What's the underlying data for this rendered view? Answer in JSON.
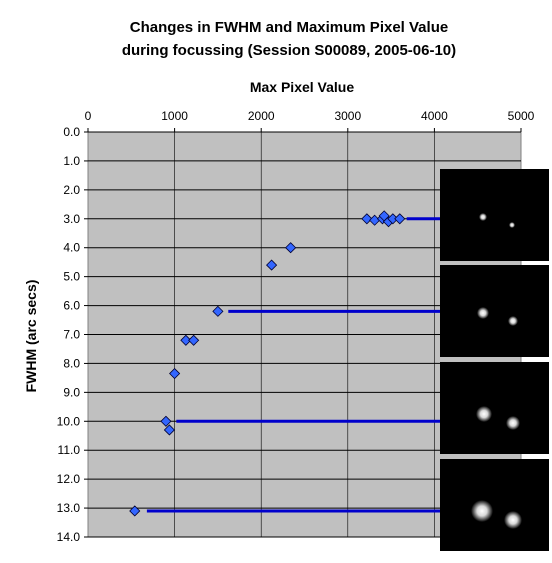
{
  "chart_data": {
    "type": "scatter",
    "title_lines": [
      "Changes in FWHM and Maximum Pixel Value",
      "during focussing (Session S00089, 2005-06-10)"
    ],
    "xlabel": "Max Pixel Value",
    "ylabel": "FWHM (arc secs)",
    "xlim": [
      0,
      5000
    ],
    "ylim": [
      0,
      14
    ],
    "x_ticks": [
      "0",
      "1000",
      "2000",
      "3000",
      "4000",
      "5000"
    ],
    "y_ticks": [
      "0.0",
      "1.0",
      "2.0",
      "3.0",
      "4.0",
      "5.0",
      "6.0",
      "7.0",
      "8.0",
      "9.0",
      "10.0",
      "11.0",
      "12.0",
      "13.0",
      "14.0"
    ],
    "x_axis_position": "top",
    "y_axis_reversed": true,
    "grid": true,
    "plot_background": "#c0c0c0",
    "marker_color": "#3366ff",
    "callout_color": "#0000cc",
    "series": [
      {
        "points": [
          {
            "x": 3220,
            "y": 3.0
          },
          {
            "x": 3310,
            "y": 3.05
          },
          {
            "x": 3400,
            "y": 3.0
          },
          {
            "x": 3420,
            "y": 2.9
          },
          {
            "x": 3470,
            "y": 3.1
          },
          {
            "x": 3520,
            "y": 3.0
          },
          {
            "x": 3600,
            "y": 3.0
          },
          {
            "x": 2340,
            "y": 4.0
          },
          {
            "x": 2120,
            "y": 4.6
          },
          {
            "x": 1500,
            "y": 6.2
          },
          {
            "x": 1130,
            "y": 7.2
          },
          {
            "x": 1220,
            "y": 7.2
          },
          {
            "x": 1000,
            "y": 8.35
          },
          {
            "x": 900,
            "y": 10.0
          },
          {
            "x": 940,
            "y": 10.3
          },
          {
            "x": 540,
            "y": 13.1
          }
        ]
      }
    ],
    "callouts": [
      {
        "from_x": 3680,
        "y": 3.0,
        "image": "star-image-1"
      },
      {
        "from_x": 1620,
        "y": 6.2,
        "image": "star-image-2"
      },
      {
        "from_x": 1020,
        "y": 10.0,
        "image": "star-image-3"
      },
      {
        "from_x": 680,
        "y": 13.1,
        "image": "star-image-4"
      }
    ]
  }
}
